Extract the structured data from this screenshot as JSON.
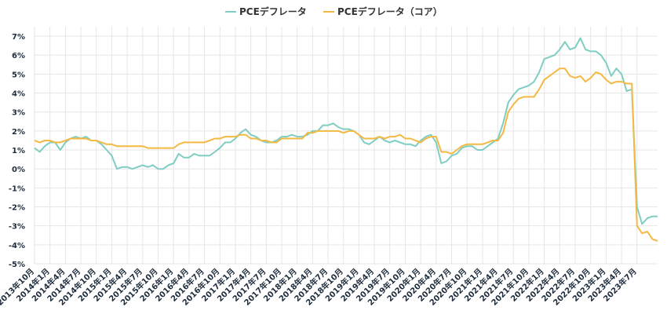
{
  "chart_data": {
    "type": "line",
    "title": "",
    "xlabel": "",
    "ylabel": "",
    "ylim": [
      -5,
      7.5
    ],
    "yticks": [
      -5,
      -4,
      -3,
      -2,
      -1,
      0,
      1,
      2,
      3,
      4,
      5,
      6,
      7
    ],
    "ytick_suffix": "%",
    "x_start": "2013-10",
    "x_tick_labels": [
      "2013年10月",
      "2014年1月",
      "2014年4月",
      "2014年7月",
      "2014年10月",
      "2015年1月",
      "2015年4月",
      "2015年7月",
      "2015年10月",
      "2016年1月",
      "2016年4月",
      "2016年7月",
      "2016年10月",
      "2017年1月",
      "2017年4月",
      "2017年7月",
      "2017年10月",
      "2018年1月",
      "2018年4月",
      "2018年7月",
      "2018年10月",
      "2019年1月",
      "2019年4月",
      "2019年7月",
      "2019年10月",
      "2020年1月",
      "2020年4月",
      "2020年7月",
      "2020年10月",
      "2021年1月",
      "2021年4月",
      "2021年7月",
      "2021年10月",
      "2022年1月",
      "2022年4月",
      "2022年7月",
      "2022年10月",
      "2023年1月",
      "2023年4月",
      "2023年7月"
    ],
    "legend_position": "top-center",
    "series": [
      {
        "name": "PCEデフレータ",
        "color": "#7fcdc3",
        "values": [
          1.1,
          0.9,
          1.2,
          1.4,
          1.4,
          1.0,
          1.4,
          1.6,
          1.7,
          1.6,
          1.7,
          1.5,
          1.5,
          1.3,
          1.0,
          0.7,
          0.0,
          0.1,
          0.1,
          0.0,
          0.1,
          0.2,
          0.1,
          0.2,
          0.0,
          0.0,
          0.2,
          0.3,
          0.8,
          0.6,
          0.6,
          0.8,
          0.7,
          0.7,
          0.7,
          0.9,
          1.1,
          1.4,
          1.4,
          1.6,
          1.9,
          2.1,
          1.8,
          1.7,
          1.5,
          1.4,
          1.4,
          1.5,
          1.7,
          1.7,
          1.8,
          1.7,
          1.7,
          1.8,
          2.0,
          2.0,
          2.3,
          2.3,
          2.4,
          2.2,
          2.1,
          2.1,
          2.0,
          1.8,
          1.4,
          1.3,
          1.5,
          1.7,
          1.5,
          1.4,
          1.5,
          1.4,
          1.3,
          1.3,
          1.2,
          1.5,
          1.7,
          1.8,
          1.4,
          0.3,
          0.4,
          0.7,
          0.8,
          1.1,
          1.2,
          1.2,
          1.0,
          1.0,
          1.2,
          1.4,
          1.6,
          2.4,
          3.5,
          3.9,
          4.2,
          4.3,
          4.4,
          4.6,
          5.1,
          5.8,
          5.9,
          6.0,
          6.3,
          6.7,
          6.3,
          6.4,
          6.9,
          6.3,
          6.2,
          6.2,
          6.0,
          5.6,
          4.9,
          5.3,
          5.0,
          4.1,
          4.2,
          -2.0,
          -2.9,
          -2.6,
          -2.5,
          -2.5
        ]
      },
      {
        "name": "PCEデフレータ（コア）",
        "color": "#f4b942",
        "values": [
          1.5,
          1.4,
          1.5,
          1.5,
          1.4,
          1.4,
          1.5,
          1.6,
          1.6,
          1.6,
          1.6,
          1.5,
          1.5,
          1.4,
          1.3,
          1.3,
          1.2,
          1.2,
          1.2,
          1.2,
          1.2,
          1.2,
          1.1,
          1.1,
          1.1,
          1.1,
          1.1,
          1.1,
          1.3,
          1.4,
          1.4,
          1.4,
          1.4,
          1.4,
          1.5,
          1.6,
          1.6,
          1.7,
          1.7,
          1.7,
          1.8,
          1.8,
          1.6,
          1.6,
          1.5,
          1.5,
          1.4,
          1.4,
          1.6,
          1.6,
          1.6,
          1.6,
          1.6,
          1.9,
          1.9,
          2.0,
          2.0,
          2.0,
          2.0,
          2.0,
          1.9,
          2.0,
          2.0,
          1.8,
          1.6,
          1.6,
          1.6,
          1.7,
          1.6,
          1.7,
          1.7,
          1.8,
          1.6,
          1.6,
          1.5,
          1.4,
          1.6,
          1.7,
          1.7,
          0.9,
          0.9,
          0.8,
          1.0,
          1.2,
          1.3,
          1.3,
          1.3,
          1.3,
          1.4,
          1.5,
          1.5,
          1.9,
          3.0,
          3.4,
          3.7,
          3.8,
          3.8,
          3.8,
          4.2,
          4.7,
          4.9,
          5.1,
          5.3,
          5.3,
          4.9,
          4.8,
          4.9,
          4.6,
          4.8,
          5.1,
          5.0,
          4.7,
          4.5,
          4.6,
          4.6,
          4.5,
          4.5,
          -3.0,
          -3.4,
          -3.3,
          -3.7,
          -3.8
        ]
      }
    ]
  }
}
